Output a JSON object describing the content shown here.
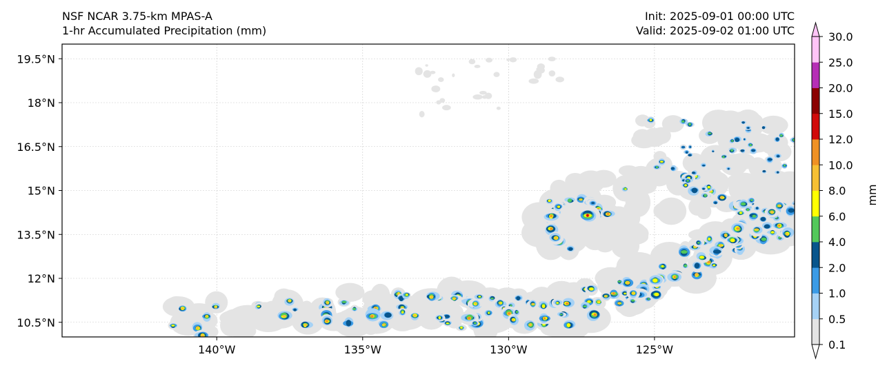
{
  "header": {
    "model": "NSF NCAR 3.75-km MPAS-A",
    "field": "1-hr Accumulated Precipitation (mm)",
    "init": "Init: 2025-09-01 00:00 UTC",
    "valid": "Valid: 2025-09-02 01:00 UTC"
  },
  "map": {
    "lon_range": [
      -145.3,
      -120.2
    ],
    "lat_range": [
      10.0,
      20.0
    ],
    "lon_ticks": [
      {
        "value": -140,
        "label": "140°W"
      },
      {
        "value": -135,
        "label": "135°W"
      },
      {
        "value": -130,
        "label": "130°W"
      },
      {
        "value": -125,
        "label": "125°W"
      }
    ],
    "lat_ticks": [
      {
        "value": 19.5,
        "label": "19.5°N"
      },
      {
        "value": 18.0,
        "label": "18°N"
      },
      {
        "value": 16.5,
        "label": "16.5°N"
      },
      {
        "value": 15.0,
        "label": "15°N"
      },
      {
        "value": 13.5,
        "label": "13.5°N"
      },
      {
        "value": 12.0,
        "label": "12°N"
      },
      {
        "value": 10.5,
        "label": "10.5°N"
      }
    ],
    "features": {
      "cyclone_center": {
        "lon": -127.3,
        "lat": 14.1
      },
      "rainband_axis": [
        {
          "lon": -141.5,
          "lat": 10.3
        },
        {
          "lon": -136.5,
          "lat": 10.8
        },
        {
          "lon": -132.0,
          "lat": 10.7
        },
        {
          "lon": -128.5,
          "lat": 10.6
        },
        {
          "lon": -125.5,
          "lat": 11.4
        },
        {
          "lon": -123.5,
          "lat": 12.5
        },
        {
          "lon": -121.5,
          "lat": 13.5
        },
        {
          "lon": -120.2,
          "lat": 13.9
        }
      ],
      "northeast_band_axis": [
        {
          "lon": -125.0,
          "lat": 16.2
        },
        {
          "lon": -123.8,
          "lat": 15.3
        },
        {
          "lon": -122.6,
          "lat": 14.6
        },
        {
          "lon": -121.5,
          "lat": 14.4
        }
      ]
    }
  },
  "colorbar": {
    "label": "mm",
    "levels": [
      "0.1",
      "0.5",
      "1.0",
      "2.0",
      "4.0",
      "6.0",
      "8.0",
      "10.0",
      "12.0",
      "15.0",
      "20.0",
      "25.0",
      "30.0"
    ],
    "colors": [
      "#e4e4e4",
      "#a6d2f5",
      "#3b9be6",
      "#08558c",
      "#53c85a",
      "#ffff00",
      "#f6c034",
      "#ef9124",
      "#d10a0a",
      "#8b0000",
      "#b62eb6",
      "#ffc4f7"
    ],
    "extend_low_color": "#ffffff",
    "extend_high_color": "#ffc4f7"
  }
}
